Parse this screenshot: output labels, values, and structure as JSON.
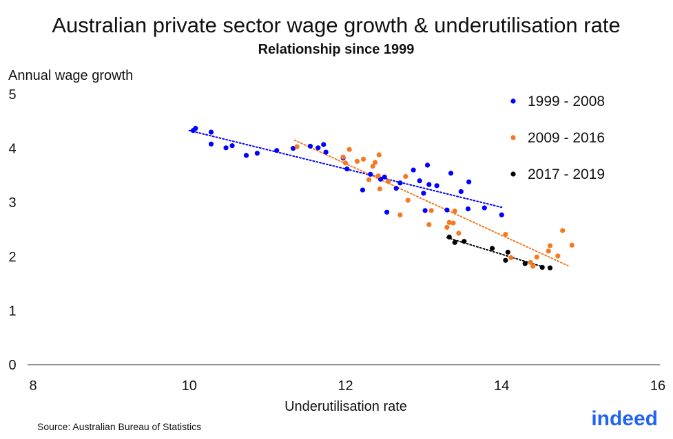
{
  "title": "Australian private sector wage growth & underutilisation rate",
  "subtitle": "Relationship since 1999",
  "source": "Source: Australian Bureau of Statistics",
  "brand": {
    "logo_text": "indeed",
    "color": "#2164f3"
  },
  "chart_data": {
    "type": "scatter",
    "xlabel": "Underutilisation rate",
    "ylabel": "Annual wage growth",
    "xlim": [
      8,
      16
    ],
    "ylim": [
      0,
      5
    ],
    "xticks": [
      "8",
      "10",
      "12",
      "14",
      "16"
    ],
    "yticks": [
      "0",
      "1",
      "2",
      "3",
      "4",
      "5"
    ],
    "grid": false,
    "legend_position": "top-right",
    "series": [
      {
        "name": "1999 - 2008",
        "color": "#0000ff",
        "trend": [
          [
            10.0,
            4.33
          ],
          [
            14.0,
            2.91
          ]
        ],
        "points": [
          [
            10.05,
            4.33
          ],
          [
            10.08,
            4.37
          ],
          [
            10.28,
            4.3
          ],
          [
            10.28,
            4.08
          ],
          [
            10.47,
            4.01
          ],
          [
            10.55,
            4.05
          ],
          [
            10.73,
            3.87
          ],
          [
            10.87,
            3.91
          ],
          [
            11.12,
            3.96
          ],
          [
            11.33,
            4.0
          ],
          [
            11.55,
            4.04
          ],
          [
            11.65,
            4.01
          ],
          [
            11.72,
            4.07
          ],
          [
            11.75,
            3.93
          ],
          [
            11.97,
            3.82
          ],
          [
            12.02,
            3.62
          ],
          [
            12.22,
            3.23
          ],
          [
            12.32,
            3.52
          ],
          [
            12.45,
            3.43
          ],
          [
            12.5,
            3.47
          ],
          [
            12.53,
            2.82
          ],
          [
            12.65,
            3.26
          ],
          [
            12.7,
            3.36
          ],
          [
            12.87,
            3.6
          ],
          [
            12.95,
            3.4
          ],
          [
            13.0,
            3.17
          ],
          [
            13.02,
            2.85
          ],
          [
            13.05,
            3.69
          ],
          [
            13.07,
            3.33
          ],
          [
            13.17,
            3.31
          ],
          [
            13.3,
            2.86
          ],
          [
            13.35,
            3.54
          ],
          [
            13.48,
            3.2
          ],
          [
            13.57,
            2.88
          ],
          [
            13.58,
            3.38
          ],
          [
            13.78,
            2.9
          ],
          [
            14.0,
            2.77
          ]
        ]
      },
      {
        "name": "2009 - 2016",
        "color": "#f47a20",
        "trend": [
          [
            11.35,
            4.15
          ],
          [
            14.85,
            1.83
          ]
        ],
        "points": [
          [
            11.38,
            4.03
          ],
          [
            11.97,
            3.84
          ],
          [
            12.0,
            3.73
          ],
          [
            12.05,
            3.98
          ],
          [
            12.15,
            3.76
          ],
          [
            12.23,
            3.8
          ],
          [
            12.3,
            3.42
          ],
          [
            12.35,
            3.67
          ],
          [
            12.38,
            3.74
          ],
          [
            12.42,
            3.49
          ],
          [
            12.43,
            3.88
          ],
          [
            12.44,
            3.25
          ],
          [
            12.55,
            3.39
          ],
          [
            12.7,
            2.77
          ],
          [
            12.77,
            3.48
          ],
          [
            12.8,
            3.04
          ],
          [
            13.07,
            2.59
          ],
          [
            13.1,
            2.85
          ],
          [
            13.3,
            2.54
          ],
          [
            13.33,
            2.63
          ],
          [
            13.38,
            2.62
          ],
          [
            13.4,
            2.84
          ],
          [
            13.45,
            2.43
          ],
          [
            14.05,
            2.41
          ],
          [
            14.12,
            1.98
          ],
          [
            14.37,
            1.89
          ],
          [
            14.4,
            1.82
          ],
          [
            14.45,
            1.99
          ],
          [
            14.6,
            2.1
          ],
          [
            14.62,
            2.2
          ],
          [
            14.72,
            2.01
          ],
          [
            14.78,
            2.48
          ],
          [
            14.9,
            2.21
          ]
        ]
      },
      {
        "name": "2017 - 2019",
        "color": "#000000",
        "trend": [
          [
            13.3,
            2.35
          ],
          [
            14.55,
            1.8
          ]
        ],
        "points": [
          [
            13.33,
            2.36
          ],
          [
            13.4,
            2.26
          ],
          [
            13.52,
            2.28
          ],
          [
            13.88,
            2.15
          ],
          [
            14.05,
            1.93
          ],
          [
            14.08,
            2.08
          ],
          [
            14.3,
            1.87
          ],
          [
            14.52,
            1.8
          ],
          [
            14.62,
            1.79
          ]
        ]
      }
    ]
  }
}
